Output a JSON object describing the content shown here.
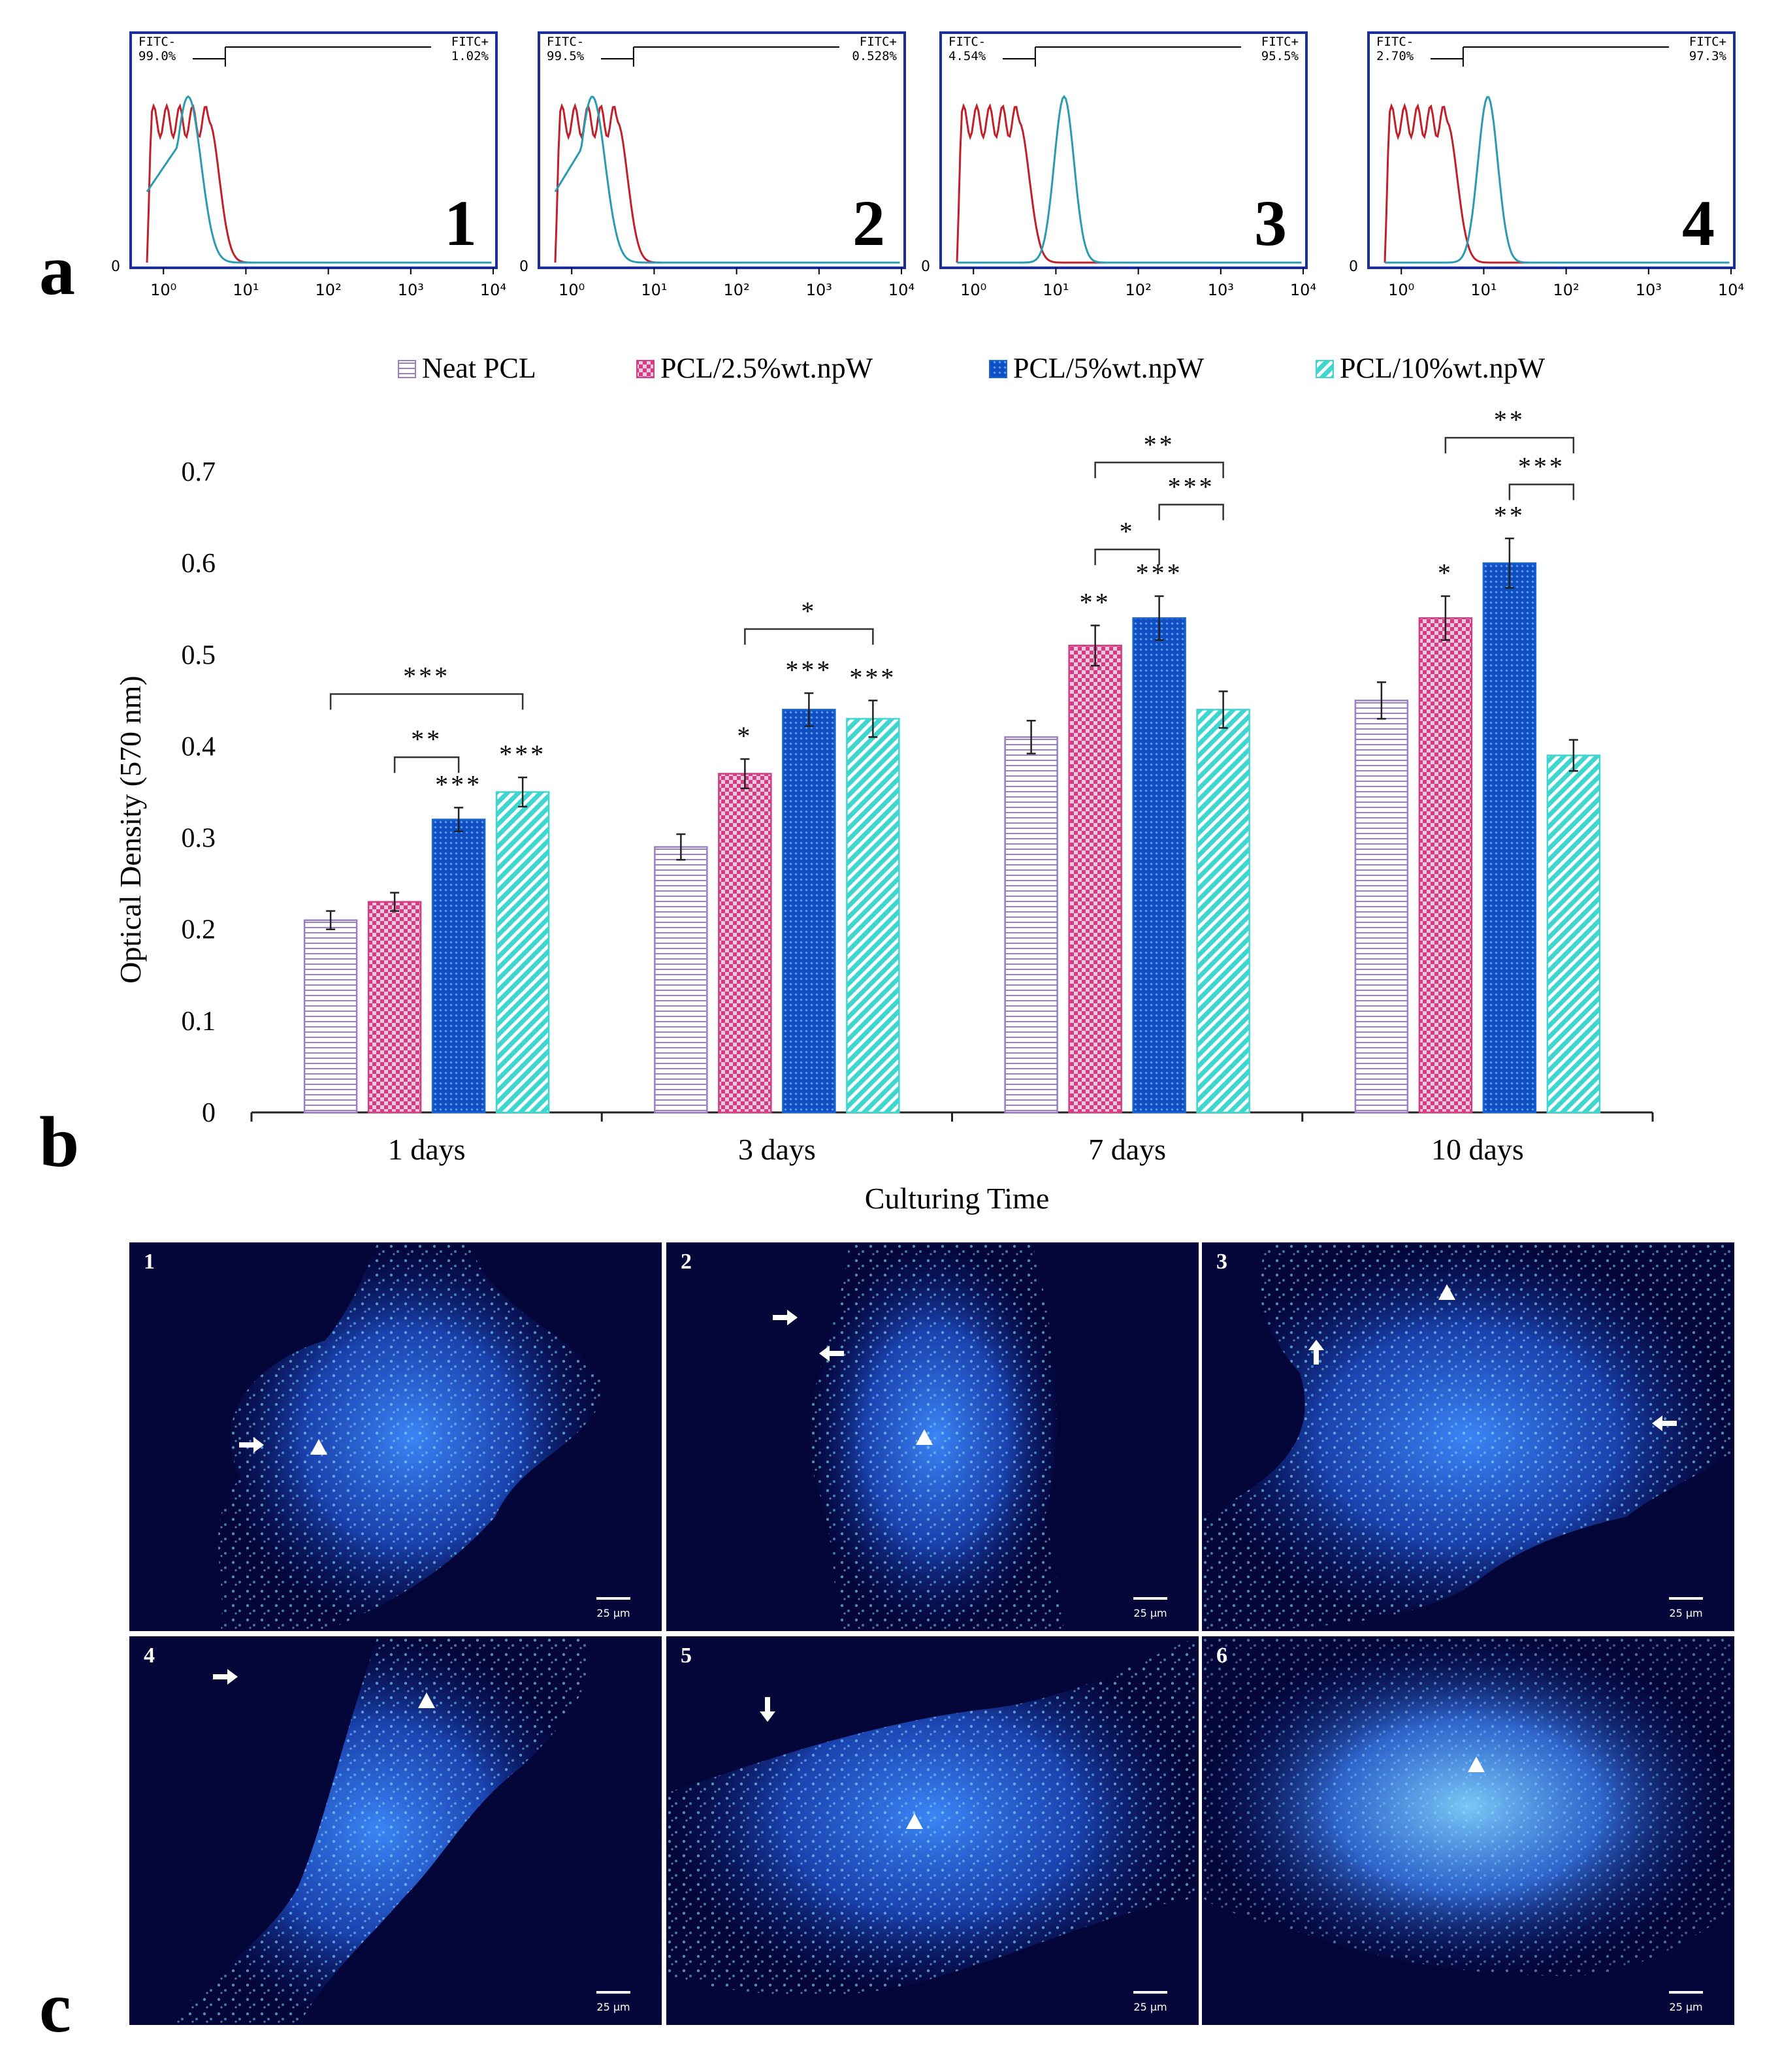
{
  "panel_labels": {
    "a": "a",
    "b": "b",
    "c": "c"
  },
  "flow_cytometry": {
    "x_tick_labels": [
      "10⁰",
      "10¹",
      "10²",
      "10³",
      "10⁴"
    ],
    "y_zero_label": "0",
    "plots": [
      {
        "number": "1",
        "neg_label": "FITC-",
        "neg_value": "99.0%",
        "pos_label": "FITC+",
        "pos_value": "1.02%",
        "peak_log": 0.3
      },
      {
        "number": "2",
        "neg_label": "FITC-",
        "neg_value": "99.5%",
        "pos_label": "FITC+",
        "pos_value": "0.528%",
        "peak_log": 0.25
      },
      {
        "number": "3",
        "neg_label": "FITC-",
        "neg_value": "4.54%",
        "pos_label": "FITC+",
        "pos_value": "95.5%",
        "peak_log": 1.1
      },
      {
        "number": "4",
        "neg_label": "FITC-",
        "neg_value": "2.70%",
        "pos_label": "FITC+",
        "pos_value": "97.3%",
        "peak_log": 1.05
      }
    ],
    "colors": {
      "control": "#c0202a",
      "sample": "#2a9bb0"
    }
  },
  "chart_data": {
    "type": "bar",
    "title": "",
    "xlabel": "Culturing Time",
    "ylabel": "Optical Density (570 nm)",
    "ylim": [
      0,
      0.7
    ],
    "yticks": [
      "0",
      "0.1",
      "0.2",
      "0.3",
      "0.4",
      "0.5",
      "0.6",
      "0.7"
    ],
    "categories": [
      "1 days",
      "3 days",
      "7 days",
      "10 days"
    ],
    "legend_position": "top",
    "series": [
      {
        "name": "Neat PCL",
        "values": [
          0.21,
          0.29,
          0.41,
          0.45
        ],
        "errors": [
          0.01,
          0.014,
          0.018,
          0.02
        ],
        "color": "#9a7fc4",
        "fill": "#ffffff",
        "pattern": "hlines",
        "stars": [
          "",
          "",
          "",
          ""
        ]
      },
      {
        "name": "PCL/2.5%wt.npW",
        "values": [
          0.23,
          0.37,
          0.51,
          0.54
        ],
        "errors": [
          0.01,
          0.016,
          0.022,
          0.024
        ],
        "color": "#d43c86",
        "fill": "#ffffff",
        "pattern": "checker",
        "stars": [
          "",
          "*",
          "**",
          "*"
        ]
      },
      {
        "name": "PCL/5%wt.npW",
        "values": [
          0.32,
          0.44,
          0.54,
          0.6
        ],
        "errors": [
          0.013,
          0.018,
          0.024,
          0.027
        ],
        "color": "#1b66d6",
        "fill": "#0f4fc2",
        "pattern": "dots",
        "stars": [
          "***",
          "***",
          "***",
          "**"
        ]
      },
      {
        "name": "PCL/10%wt.npW",
        "values": [
          0.35,
          0.43,
          0.44,
          0.39
        ],
        "errors": [
          0.016,
          0.02,
          0.02,
          0.017
        ],
        "color": "#3fd6d0",
        "fill": "#ffffff",
        "pattern": "diag",
        "stars": [
          "***",
          "***",
          "",
          ""
        ]
      }
    ],
    "comparison_brackets": [
      {
        "group": 0,
        "from": 1,
        "to": 2,
        "label": "**",
        "level": 0.388
      },
      {
        "group": 0,
        "from": 0,
        "to": 3,
        "label": "***",
        "level": 0.457
      },
      {
        "group": 1,
        "from": 1,
        "to": 3,
        "label": "*",
        "level": 0.528
      },
      {
        "group": 2,
        "from": 1,
        "to": 2,
        "label": "*",
        "level": 0.615
      },
      {
        "group": 2,
        "from": 2,
        "to": 3,
        "label": "***",
        "level": 0.664
      },
      {
        "group": 2,
        "from": 1,
        "to": 3,
        "label": "**",
        "level": 0.71
      },
      {
        "group": 3,
        "from": 2,
        "to": 3,
        "label": "***",
        "level": 0.686
      },
      {
        "group": 3,
        "from": 1,
        "to": 3,
        "label": "**",
        "level": 0.737
      }
    ]
  },
  "micrographs": [
    {
      "number": "1",
      "scale": "25 µm"
    },
    {
      "number": "2",
      "scale": "25 µm"
    },
    {
      "number": "3",
      "scale": "25 µm"
    },
    {
      "number": "4",
      "scale": "25 µm"
    },
    {
      "number": "5",
      "scale": "25 µm"
    },
    {
      "number": "6",
      "scale": "25 µm"
    }
  ]
}
